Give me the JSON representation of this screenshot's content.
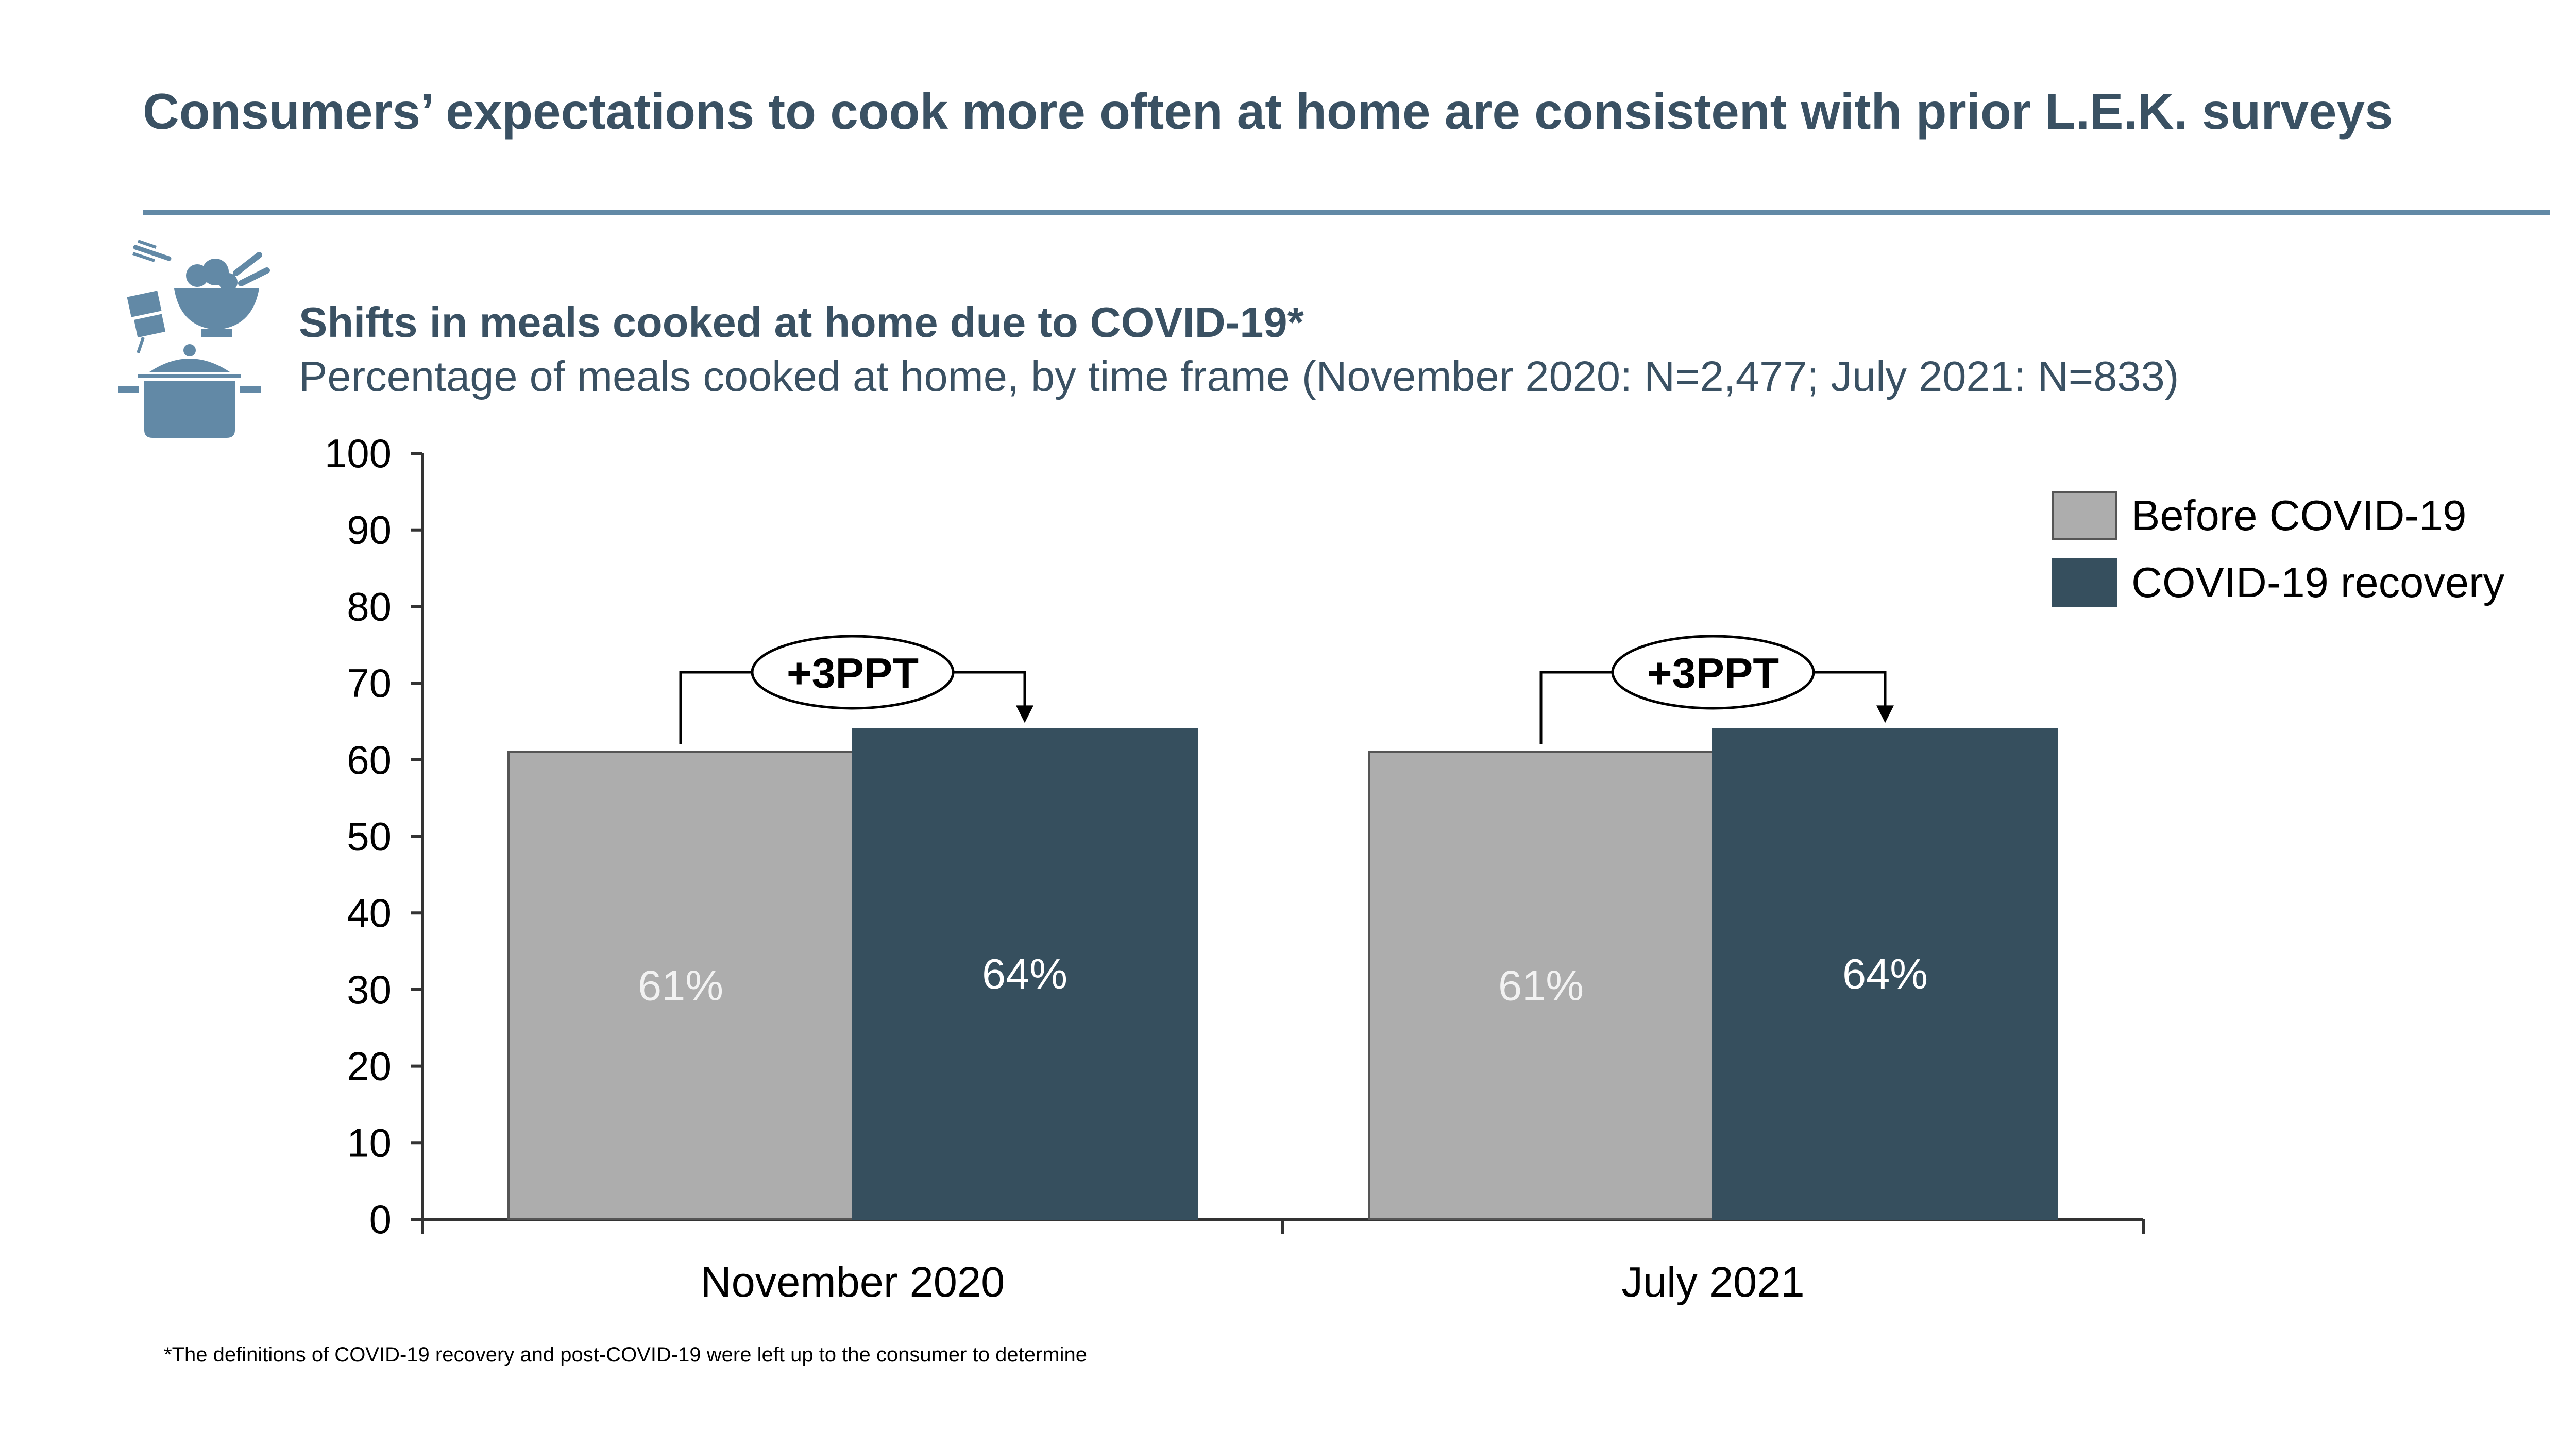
{
  "page_title": "Consumers’ expectations to cook more often at home are consistent with prior L.E.K. surveys",
  "chart_title": "Shifts in meals cooked at home due to COVID-19*",
  "chart_subtitle": "Percentage of meals cooked at home, by time frame (November 2020: N=2,477; July 2021: N=833)",
  "footnote": "*The definitions of COVID-19 recovery and post-COVID-19 were left up to the consumer to determine",
  "icon": "cooking-pot-bowl-icon",
  "colors": {
    "title": "#3a5163",
    "rule": "#6289a6",
    "icon": "#6289a6",
    "before": "#adadad",
    "recovery": "#364f5e"
  },
  "chart_data": {
    "type": "bar",
    "categories": [
      "November 2020",
      "July 2021"
    ],
    "series": [
      {
        "name": "Before COVID-19",
        "values": [
          61,
          61
        ],
        "labels": [
          "61%",
          "61%"
        ]
      },
      {
        "name": "COVID-19 recovery",
        "values": [
          64,
          64
        ],
        "labels": [
          "64%",
          "64%"
        ]
      }
    ],
    "annotations": [
      "+3PPT",
      "+3PPT"
    ],
    "ylim": [
      0,
      100
    ],
    "yticks": [
      0,
      10,
      20,
      30,
      40,
      50,
      60,
      70,
      80,
      90,
      100
    ],
    "legend": "top-right",
    "grid": false
  }
}
